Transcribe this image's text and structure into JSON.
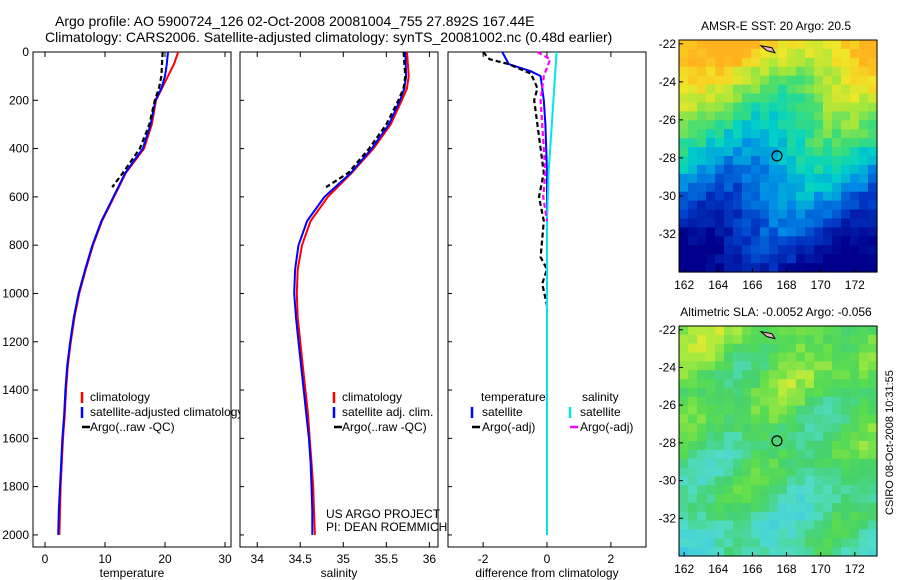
{
  "figure": {
    "title_line1": "Argo profile: AO 5900724_126 02-Oct-2008 20081004_755 27.892S 167.44E",
    "title_line2": "Climatology: CARS2006. Satellite-adjusted climatology: synTS_20081002.nc (0.48d earlier)",
    "credit_line1": "US ARGO PROJECT",
    "credit_line2": "PI: DEAN ROEMMICH",
    "stamp": "CSIRO 08-Oct-2008 10:31:55"
  },
  "colors": {
    "climatology": "#ff0000",
    "satellite": "#0000ff",
    "argo": "#000000",
    "satellite_salinity": "#00e5e5",
    "argo_salinity": "#ff00ff"
  },
  "chart_data": [
    {
      "type": "line",
      "xlabel": "temperature",
      "ylabel": "",
      "xlim": [
        -2,
        31
      ],
      "ylim": [
        2050,
        0
      ],
      "x_ticks": [
        0,
        10,
        20,
        30
      ],
      "y_ticks": [
        0,
        200,
        400,
        600,
        800,
        1000,
        1200,
        1400,
        1600,
        1800,
        2000
      ],
      "legend": [
        "climatology",
        "satellite-adjusted climatology",
        "Argo(..raw -QC)"
      ],
      "legend_position": "lower-center",
      "series": [
        {
          "name": "climatology",
          "color": "#ff0000",
          "dash": false,
          "points": [
            [
              22.2,
              0
            ],
            [
              21.5,
              50
            ],
            [
              20.5,
              100
            ],
            [
              19.5,
              150
            ],
            [
              18.5,
              200
            ],
            [
              17.8,
              300
            ],
            [
              16.5,
              400
            ],
            [
              13.5,
              500
            ],
            [
              11.5,
              600
            ],
            [
              9.5,
              700
            ],
            [
              8.0,
              800
            ],
            [
              6.8,
              900
            ],
            [
              5.7,
              1000
            ],
            [
              4.9,
              1100
            ],
            [
              4.3,
              1200
            ],
            [
              3.8,
              1300
            ],
            [
              3.5,
              1400
            ],
            [
              3.3,
              1500
            ],
            [
              3.0,
              1600
            ],
            [
              2.8,
              1700
            ],
            [
              2.6,
              1800
            ],
            [
              2.5,
              1900
            ],
            [
              2.4,
              2000
            ]
          ]
        },
        {
          "name": "satellite-adjusted climatology",
          "color": "#0000ff",
          "dash": false,
          "points": [
            [
              20.5,
              0
            ],
            [
              20.3,
              50
            ],
            [
              20.0,
              100
            ],
            [
              19.4,
              150
            ],
            [
              18.4,
              200
            ],
            [
              17.6,
              300
            ],
            [
              16.3,
              400
            ],
            [
              13.4,
              500
            ],
            [
              11.4,
              600
            ],
            [
              9.4,
              700
            ],
            [
              7.9,
              800
            ],
            [
              6.7,
              900
            ],
            [
              5.6,
              1000
            ],
            [
              4.8,
              1100
            ],
            [
              4.2,
              1200
            ],
            [
              3.7,
              1300
            ],
            [
              3.4,
              1400
            ],
            [
              3.2,
              1500
            ],
            [
              2.9,
              1600
            ],
            [
              2.7,
              1700
            ],
            [
              2.5,
              1800
            ],
            [
              2.3,
              1900
            ],
            [
              2.2,
              2000
            ]
          ]
        },
        {
          "name": "Argo(..raw -QC)",
          "color": "#000000",
          "dash": true,
          "points": [
            [
              19.6,
              0
            ],
            [
              19.5,
              50
            ],
            [
              19.4,
              100
            ],
            [
              19.0,
              150
            ],
            [
              18.3,
              200
            ],
            [
              17.4,
              300
            ],
            [
              15.8,
              400
            ],
            [
              13.0,
              500
            ],
            [
              11.2,
              560
            ]
          ]
        }
      ]
    },
    {
      "type": "line",
      "xlabel": "salinity",
      "ylabel": "",
      "xlim": [
        33.8,
        36.1
      ],
      "ylim": [
        2050,
        0
      ],
      "x_ticks": [
        34,
        34.5,
        35,
        35.5,
        36
      ],
      "y_ticks": [],
      "legend": [
        "climatology",
        "satellite adj. clim.",
        "Argo(..raw -QC)"
      ],
      "legend_position": "lower-center",
      "series": [
        {
          "name": "climatology",
          "color": "#ff0000",
          "dash": false,
          "points": [
            [
              35.74,
              0
            ],
            [
              35.76,
              100
            ],
            [
              35.74,
              150
            ],
            [
              35.68,
              200
            ],
            [
              35.55,
              300
            ],
            [
              35.35,
              400
            ],
            [
              35.1,
              500
            ],
            [
              34.82,
              600
            ],
            [
              34.62,
              700
            ],
            [
              34.52,
              800
            ],
            [
              34.47,
              900
            ],
            [
              34.46,
              1000
            ],
            [
              34.47,
              1100
            ],
            [
              34.5,
              1200
            ],
            [
              34.53,
              1300
            ],
            [
              34.56,
              1400
            ],
            [
              34.59,
              1500
            ],
            [
              34.61,
              1600
            ],
            [
              34.63,
              1700
            ],
            [
              34.65,
              1800
            ],
            [
              34.66,
              1900
            ],
            [
              34.67,
              2000
            ]
          ]
        },
        {
          "name": "satellite adj. clim.",
          "color": "#0000ff",
          "dash": false,
          "points": [
            [
              35.72,
              0
            ],
            [
              35.73,
              100
            ],
            [
              35.71,
              150
            ],
            [
              35.66,
              200
            ],
            [
              35.53,
              300
            ],
            [
              35.33,
              400
            ],
            [
              35.09,
              500
            ],
            [
              34.78,
              600
            ],
            [
              34.58,
              700
            ],
            [
              34.48,
              800
            ],
            [
              34.44,
              900
            ],
            [
              34.43,
              1000
            ],
            [
              34.45,
              1100
            ],
            [
              34.48,
              1200
            ],
            [
              34.51,
              1300
            ],
            [
              34.54,
              1400
            ],
            [
              34.57,
              1500
            ],
            [
              34.6,
              1600
            ],
            [
              34.62,
              1700
            ],
            [
              34.63,
              1800
            ],
            [
              34.64,
              1900
            ],
            [
              34.64,
              2000
            ]
          ]
        },
        {
          "name": "Argo(..raw -QC)",
          "color": "#000000",
          "dash": true,
          "points": [
            [
              35.7,
              0
            ],
            [
              35.72,
              100
            ],
            [
              35.7,
              150
            ],
            [
              35.64,
              200
            ],
            [
              35.5,
              300
            ],
            [
              35.3,
              400
            ],
            [
              35.06,
              500
            ],
            [
              34.8,
              560
            ]
          ]
        }
      ]
    },
    {
      "type": "line",
      "xlabel": "difference from climatology",
      "ylabel": "",
      "xlim": [
        -3.1,
        3.1
      ],
      "ylim": [
        2050,
        0
      ],
      "x_ticks": [
        -2,
        0,
        2
      ],
      "y_ticks": [],
      "legend_headers": [
        "temperature",
        "salinity"
      ],
      "legend": [
        "satellite",
        "Argo(-adj)",
        "satellite",
        "Argo(-adj)"
      ],
      "legend_position": "lower-center",
      "series": [
        {
          "name": "satellite",
          "color": "#0000ff",
          "dash": false,
          "points": [
            [
              -1.4,
              0
            ],
            [
              -1.2,
              50
            ],
            [
              -0.5,
              80
            ],
            [
              -0.2,
              100
            ],
            [
              -0.1,
              200
            ],
            [
              -0.05,
              300
            ],
            [
              0.0,
              500
            ],
            [
              0.0,
              1000
            ],
            [
              0.0,
              2000
            ]
          ]
        },
        {
          "name": "Argo(-adj)",
          "color": "#000000",
          "dash": true,
          "points": [
            [
              -2.0,
              0
            ],
            [
              -1.8,
              30
            ],
            [
              -1.2,
              50
            ],
            [
              -0.5,
              90
            ],
            [
              -0.3,
              150
            ],
            [
              -0.4,
              200
            ],
            [
              -0.3,
              300
            ],
            [
              -0.2,
              400
            ],
            [
              -0.1,
              500
            ],
            [
              -0.25,
              600
            ],
            [
              -0.1,
              700
            ],
            [
              -0.2,
              850
            ],
            [
              0.0,
              900
            ],
            [
              -0.15,
              960
            ],
            [
              0.0,
              1050
            ]
          ]
        },
        {
          "name": "satellite",
          "color": "#00e5e5",
          "dash": false,
          "points": [
            [
              0.3,
              0
            ],
            [
              0.25,
              100
            ],
            [
              0.15,
              300
            ],
            [
              0.05,
              500
            ],
            [
              0.0,
              700
            ],
            [
              0.0,
              1000
            ],
            [
              0.0,
              2000
            ]
          ]
        },
        {
          "name": "Argo(-adj)",
          "color": "#ff00ff",
          "dash": true,
          "points": [
            [
              -0.3,
              0
            ],
            [
              0.1,
              30
            ],
            [
              -0.1,
              100
            ],
            [
              -0.2,
              200
            ],
            [
              -0.15,
              300
            ],
            [
              -0.1,
              400
            ],
            [
              -0.05,
              500
            ],
            [
              -0.12,
              600
            ],
            [
              0.0,
              700
            ]
          ]
        }
      ]
    }
  ],
  "maps": [
    {
      "title": "AMSR-E SST: 20 Argo: 20.5",
      "x_ticks": [
        "162",
        "164",
        "166",
        "168",
        "170",
        "172"
      ],
      "y_ticks": [
        "-22",
        "-24",
        "-26",
        "-28",
        "-30",
        "-32"
      ],
      "xlim": [
        161.7,
        173.3
      ],
      "ylim": [
        -34,
        -21.8
      ],
      "marker": {
        "lon": 167.44,
        "lat": -27.892
      },
      "palette": "warm-to-deep-blue"
    },
    {
      "title": "Altimetric SLA: -0.0052 Argo: -0.056",
      "x_ticks": [
        "162",
        "164",
        "166",
        "168",
        "170",
        "172"
      ],
      "y_ticks": [
        "-22",
        "-24",
        "-26",
        "-28",
        "-30",
        "-32"
      ],
      "xlim": [
        161.7,
        173.3
      ],
      "ylim": [
        -34,
        -21.8
      ],
      "marker": {
        "lon": 167.44,
        "lat": -27.892
      },
      "palette": "green-with-yellow-and-cyan"
    }
  ]
}
